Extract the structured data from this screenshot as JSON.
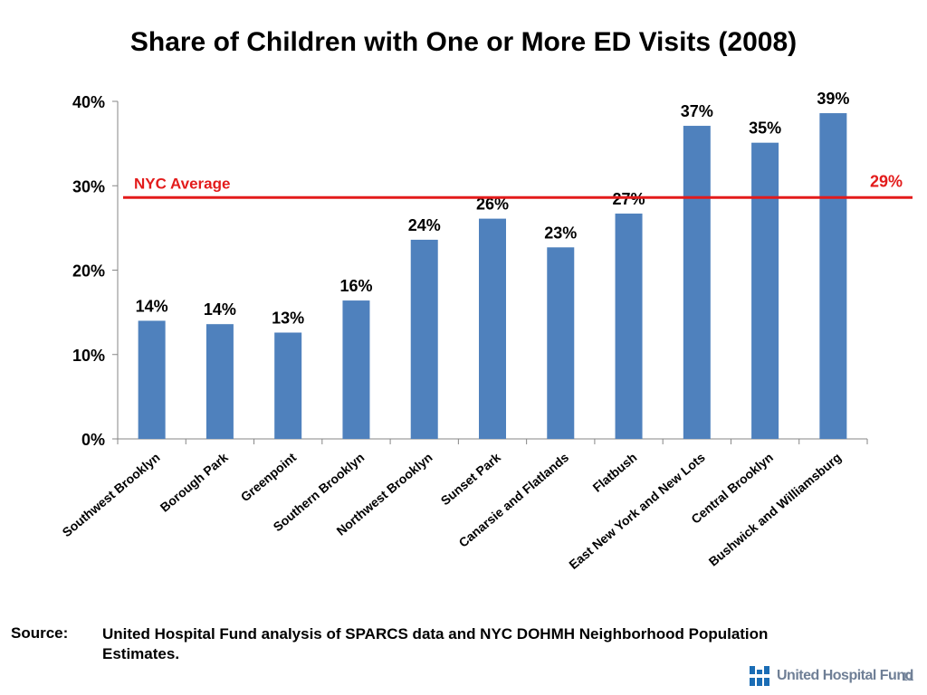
{
  "chart_data": {
    "type": "bar",
    "title": "Share of Children with One or More ED Visits (2008)",
    "categories": [
      "Southwest Brooklyn",
      "Borough Park",
      "Greenpoint",
      "Southern Brooklyn",
      "Northwest Brooklyn",
      "Sunset Park",
      "Canarsie and Flatlands",
      "Flatbush",
      "East New York and New Lots",
      "Central Brooklyn",
      "Bushwick and Williamsburg"
    ],
    "values": [
      14.0,
      13.6,
      12.6,
      16.4,
      23.6,
      26.1,
      22.7,
      26.7,
      37.1,
      35.1,
      38.6
    ],
    "data_labels": [
      "14%",
      "14%",
      "13%",
      "16%",
      "24%",
      "26%",
      "23%",
      "27%",
      "37%",
      "35%",
      "39%"
    ],
    "ylim": [
      0,
      40
    ],
    "yticks": [
      0,
      10,
      20,
      30,
      40
    ],
    "ytick_labels": [
      "0%",
      "10%",
      "20%",
      "30%",
      "40%"
    ],
    "xlabel": "",
    "ylabel": "",
    "bar_color": "#4f81bd",
    "grid": false,
    "reference_line": {
      "value": 28.6,
      "label": "NYC Average",
      "value_label": "29%",
      "color": "#e31b1b"
    }
  },
  "footer": {
    "source_label": "Source:",
    "source_text": "United Hospital Fund analysis of SPARCS data and NYC DOHMH Neighborhood Population Estimates.",
    "logo_text": "United Hospital Fund",
    "page_number": "11"
  },
  "colors": {
    "logo": "#6f7f96",
    "logo_mark": "#1b6db5"
  }
}
